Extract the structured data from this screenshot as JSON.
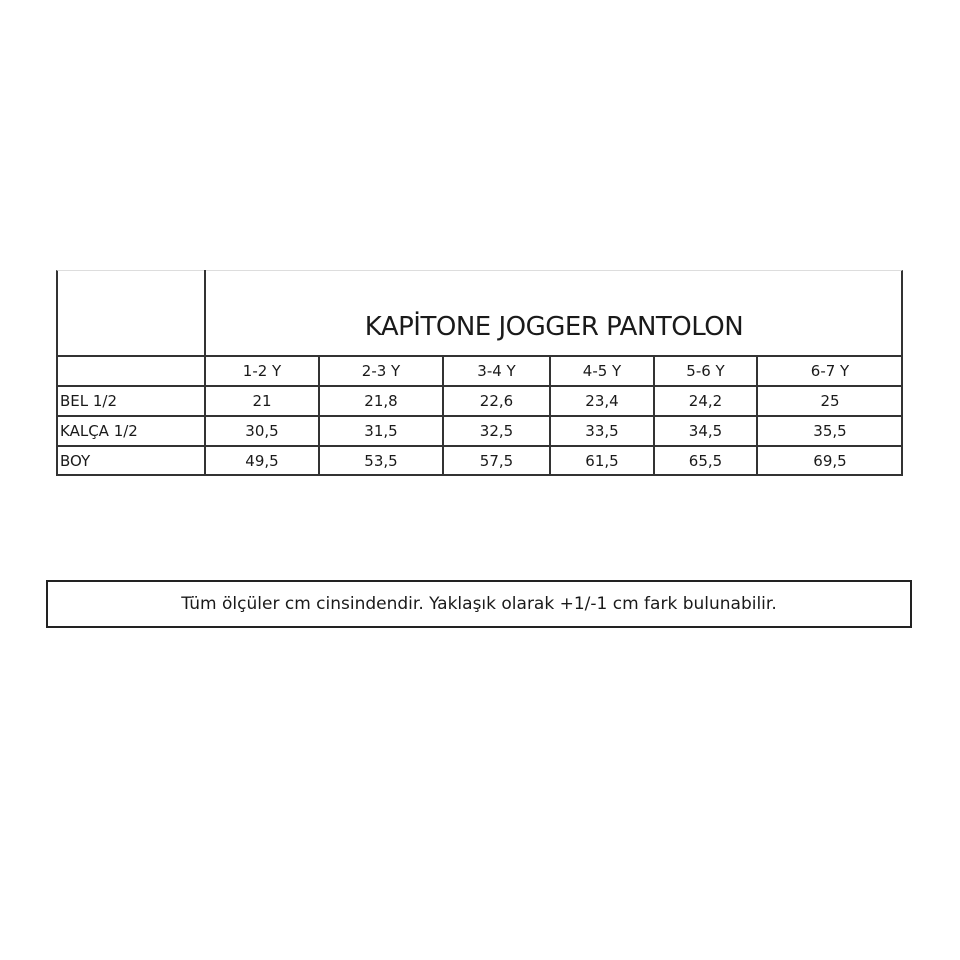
{
  "title": "KAPİTONE JOGGER PANTOLON",
  "columns": [
    "1-2 Y",
    "2-3 Y",
    "3-4 Y",
    "4-5 Y",
    "5-6 Y",
    "6-7 Y"
  ],
  "rows": [
    {
      "label": " BEL 1/2",
      "values": [
        "21",
        "21,8",
        "22,6",
        "23,4",
        "24,2",
        "25"
      ]
    },
    {
      "label": "KALÇA 1/2",
      "values": [
        "30,5",
        "31,5",
        "32,5",
        "33,5",
        "34,5",
        "35,5"
      ]
    },
    {
      "label": "BOY",
      "values": [
        "49,5",
        "53,5",
        "57,5",
        "61,5",
        "65,5",
        "69,5"
      ]
    }
  ],
  "note": "Tüm ölçüler cm cinsindendir. Yaklaşık olarak +1/-1 cm fark bulunabilir."
}
